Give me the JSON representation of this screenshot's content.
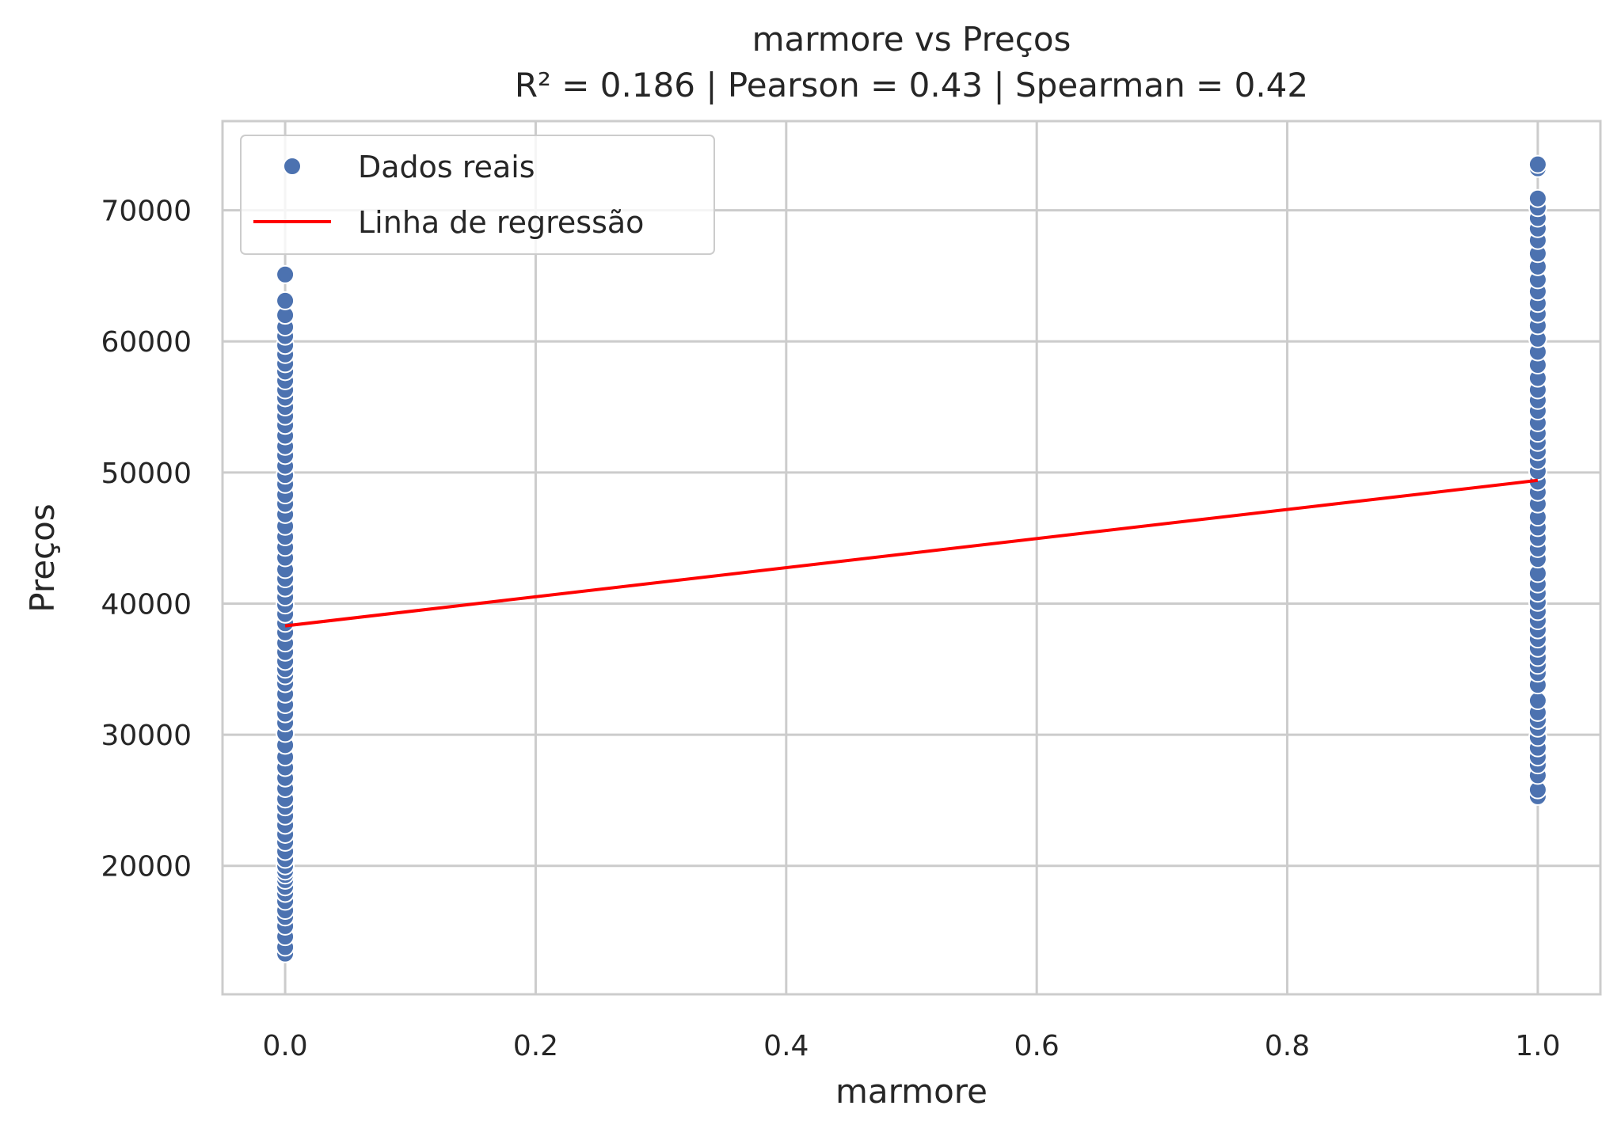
{
  "chart_data": {
    "type": "scatter",
    "title": "marmore vs Preços",
    "subtitle": "R² = 0.186 | Pearson = 0.43 | Spearman = 0.42",
    "xlabel": "marmore",
    "ylabel": "Preços",
    "xlim": [
      -0.05,
      1.05
    ],
    "ylim": [
      10200,
      76800
    ],
    "xticks": [
      "0.0",
      "0.2",
      "0.4",
      "0.6",
      "0.8",
      "1.0"
    ],
    "yticks": [
      "20000",
      "30000",
      "40000",
      "50000",
      "60000",
      "70000"
    ],
    "grid": true,
    "legend_position": "top-left",
    "series": [
      {
        "name": "Dados reais",
        "kind": "scatter",
        "color": "#4c72b0",
        "points": [
          {
            "x": 0,
            "y": 13300
          },
          {
            "x": 0,
            "y": 13800
          },
          {
            "x": 0,
            "y": 14600
          },
          {
            "x": 0,
            "y": 15400
          },
          {
            "x": 0,
            "y": 16100
          },
          {
            "x": 0,
            "y": 16600
          },
          {
            "x": 0,
            "y": 17300
          },
          {
            "x": 0,
            "y": 17900
          },
          {
            "x": 0,
            "y": 18400
          },
          {
            "x": 0,
            "y": 18900
          },
          {
            "x": 0,
            "y": 19300
          },
          {
            "x": 0,
            "y": 19600
          },
          {
            "x": 0,
            "y": 20000
          },
          {
            "x": 0,
            "y": 20500
          },
          {
            "x": 0,
            "y": 21100
          },
          {
            "x": 0,
            "y": 21800
          },
          {
            "x": 0,
            "y": 22400
          },
          {
            "x": 0,
            "y": 23100
          },
          {
            "x": 0,
            "y": 23800
          },
          {
            "x": 0,
            "y": 24500
          },
          {
            "x": 0,
            "y": 25100
          },
          {
            "x": 0,
            "y": 25900
          },
          {
            "x": 0,
            "y": 26700
          },
          {
            "x": 0,
            "y": 27500
          },
          {
            "x": 0,
            "y": 28300
          },
          {
            "x": 0,
            "y": 29200
          },
          {
            "x": 0,
            "y": 30100
          },
          {
            "x": 0,
            "y": 30900
          },
          {
            "x": 0,
            "y": 31600
          },
          {
            "x": 0,
            "y": 32300
          },
          {
            "x": 0,
            "y": 33100
          },
          {
            "x": 0,
            "y": 33900
          },
          {
            "x": 0,
            "y": 34500
          },
          {
            "x": 0,
            "y": 35000
          },
          {
            "x": 0,
            "y": 35600
          },
          {
            "x": 0,
            "y": 36300
          },
          {
            "x": 0,
            "y": 37000
          },
          {
            "x": 0,
            "y": 37800
          },
          {
            "x": 0,
            "y": 38500
          },
          {
            "x": 0,
            "y": 39200
          },
          {
            "x": 0,
            "y": 39900
          },
          {
            "x": 0,
            "y": 40500
          },
          {
            "x": 0,
            "y": 41200
          },
          {
            "x": 0,
            "y": 41900
          },
          {
            "x": 0,
            "y": 42600
          },
          {
            "x": 0,
            "y": 43500
          },
          {
            "x": 0,
            "y": 44300
          },
          {
            "x": 0,
            "y": 45100
          },
          {
            "x": 0,
            "y": 45900
          },
          {
            "x": 0,
            "y": 46800
          },
          {
            "x": 0,
            "y": 47600
          },
          {
            "x": 0,
            "y": 48300
          },
          {
            "x": 0,
            "y": 49100
          },
          {
            "x": 0,
            "y": 49800
          },
          {
            "x": 0,
            "y": 50500
          },
          {
            "x": 0,
            "y": 51300
          },
          {
            "x": 0,
            "y": 52000
          },
          {
            "x": 0,
            "y": 52800
          },
          {
            "x": 0,
            "y": 53600
          },
          {
            "x": 0,
            "y": 54300
          },
          {
            "x": 0,
            "y": 55000
          },
          {
            "x": 0,
            "y": 55700
          },
          {
            "x": 0,
            "y": 56300
          },
          {
            "x": 0,
            "y": 57000
          },
          {
            "x": 0,
            "y": 57700
          },
          {
            "x": 0,
            "y": 58300
          },
          {
            "x": 0,
            "y": 59000
          },
          {
            "x": 0,
            "y": 59700
          },
          {
            "x": 0,
            "y": 60400
          },
          {
            "x": 0,
            "y": 61100
          },
          {
            "x": 0,
            "y": 62000
          },
          {
            "x": 0,
            "y": 63100
          },
          {
            "x": 0,
            "y": 65100
          },
          {
            "x": 1,
            "y": 25300
          },
          {
            "x": 1,
            "y": 25800
          },
          {
            "x": 1,
            "y": 26900
          },
          {
            "x": 1,
            "y": 27700
          },
          {
            "x": 1,
            "y": 28300
          },
          {
            "x": 1,
            "y": 29000
          },
          {
            "x": 1,
            "y": 29800
          },
          {
            "x": 1,
            "y": 30500
          },
          {
            "x": 1,
            "y": 31100
          },
          {
            "x": 1,
            "y": 31700
          },
          {
            "x": 1,
            "y": 32600
          },
          {
            "x": 1,
            "y": 33800
          },
          {
            "x": 1,
            "y": 34700
          },
          {
            "x": 1,
            "y": 35300
          },
          {
            "x": 1,
            "y": 35900
          },
          {
            "x": 1,
            "y": 36600
          },
          {
            "x": 1,
            "y": 37300
          },
          {
            "x": 1,
            "y": 38000
          },
          {
            "x": 1,
            "y": 38700
          },
          {
            "x": 1,
            "y": 39400
          },
          {
            "x": 1,
            "y": 40100
          },
          {
            "x": 1,
            "y": 40800
          },
          {
            "x": 1,
            "y": 41500
          },
          {
            "x": 1,
            "y": 42300
          },
          {
            "x": 1,
            "y": 43400
          },
          {
            "x": 1,
            "y": 44200
          },
          {
            "x": 1,
            "y": 45000
          },
          {
            "x": 1,
            "y": 45800
          },
          {
            "x": 1,
            "y": 46600
          },
          {
            "x": 1,
            "y": 47600
          },
          {
            "x": 1,
            "y": 48500
          },
          {
            "x": 1,
            "y": 49300
          },
          {
            "x": 1,
            "y": 50100
          },
          {
            "x": 1,
            "y": 50900
          },
          {
            "x": 1,
            "y": 51600
          },
          {
            "x": 1,
            "y": 52300
          },
          {
            "x": 1,
            "y": 53000
          },
          {
            "x": 1,
            "y": 53800
          },
          {
            "x": 1,
            "y": 54700
          },
          {
            "x": 1,
            "y": 55500
          },
          {
            "x": 1,
            "y": 56300
          },
          {
            "x": 1,
            "y": 57200
          },
          {
            "x": 1,
            "y": 58200
          },
          {
            "x": 1,
            "y": 59200
          },
          {
            "x": 1,
            "y": 60200
          },
          {
            "x": 1,
            "y": 61200
          },
          {
            "x": 1,
            "y": 62100
          },
          {
            "x": 1,
            "y": 62900
          },
          {
            "x": 1,
            "y": 63800
          },
          {
            "x": 1,
            "y": 64700
          },
          {
            "x": 1,
            "y": 65700
          },
          {
            "x": 1,
            "y": 66700
          },
          {
            "x": 1,
            "y": 67700
          },
          {
            "x": 1,
            "y": 68600
          },
          {
            "x": 1,
            "y": 69400
          },
          {
            "x": 1,
            "y": 70200
          },
          {
            "x": 1,
            "y": 70900
          },
          {
            "x": 1,
            "y": 73200
          },
          {
            "x": 1,
            "y": 73500
          }
        ]
      },
      {
        "name": "Linha de regressão",
        "kind": "line",
        "color": "#ff0000",
        "x": [
          0,
          1
        ],
        "y": [
          38300,
          49400
        ]
      }
    ]
  }
}
